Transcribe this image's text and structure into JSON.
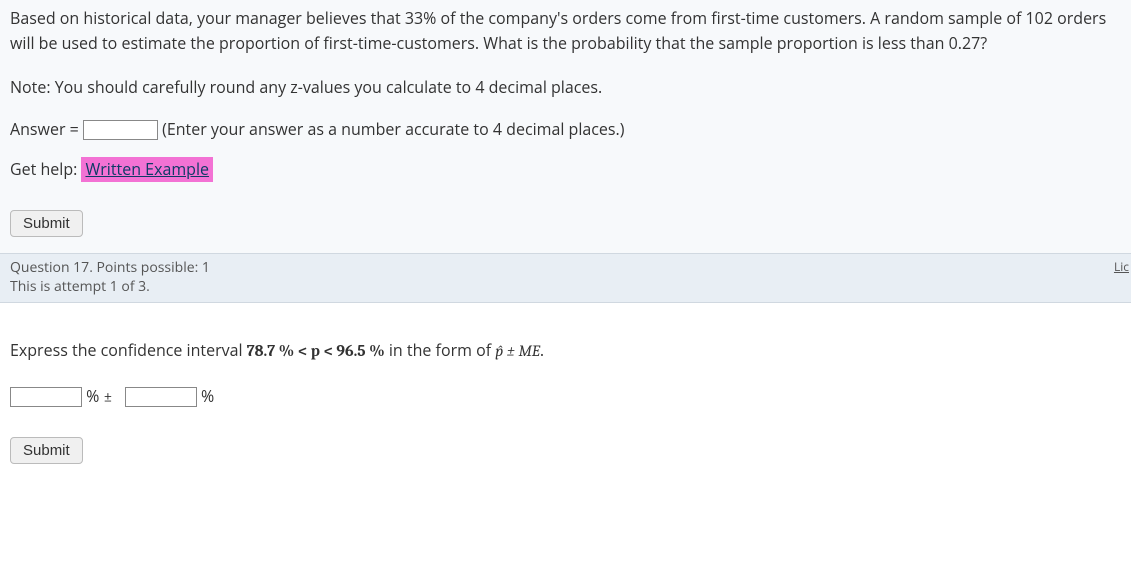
{
  "q16": {
    "text": "Based on historical data, your manager believes that 33% of the company's orders come from first-time customers. A random sample of 102 orders will be used to estimate the proportion of first-time-customers. What is the probability that the sample proportion is less than 0.27?",
    "note": "Note: You should carefully round any z-values you calculate to 4 decimal places.",
    "answer_label_pre": "Answer = ",
    "answer_value": "",
    "answer_hint": " (Enter your answer as a number accurate to 4 decimal places.)",
    "gethelp_label": "Get help: ",
    "written_example": "Written Example",
    "submit": "Submit"
  },
  "meta": {
    "line1": "Question 17. Points possible: 1",
    "line2": "This is attempt 1 of 3.",
    "lic": "Lic"
  },
  "q17": {
    "pre": "Express the confidence interval ",
    "ci_bold": "78.7 %  < p < 96.5 %",
    "mid": "  in the form of ",
    "phat_me": "p̂ ± ME",
    "period": ".",
    "input1_value": "",
    "pct1": "% ",
    "pm": "±",
    "input2_value": "",
    "pct2": "%",
    "submit": "Submit"
  }
}
